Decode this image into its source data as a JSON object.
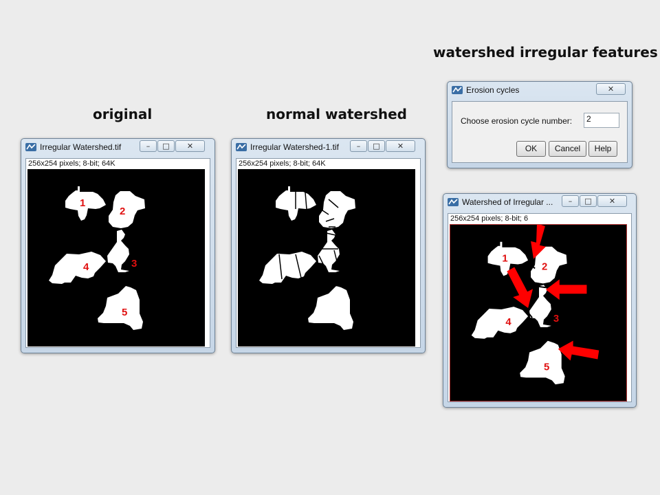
{
  "headings": {
    "original": "original",
    "normal": "normal watershed",
    "irregular": "watershed irregular features"
  },
  "windows": {
    "original": {
      "title": "Irregular Watershed.tif",
      "info": "256x254 pixels; 8-bit; 64K",
      "labels": [
        "1",
        "2",
        "3",
        "4",
        "5"
      ]
    },
    "normal": {
      "title": "Irregular Watershed-1.tif",
      "info": "256x254 pixels; 8-bit; 64K"
    },
    "result": {
      "title": "Watershed of Irregular ...",
      "info": "256x254 pixels; 8-bit; 6",
      "labels": [
        "1",
        "2",
        "3",
        "4",
        "5"
      ]
    }
  },
  "dialog": {
    "title": "Erosion cycles",
    "prompt": "Choose erosion cycle number:",
    "value": "2",
    "ok": "OK",
    "cancel": "Cancel",
    "help": "Help"
  },
  "colors": {
    "background": "#ececec",
    "image_bg": "#000000",
    "particle": "#ffffff",
    "label": "#e01010",
    "arrow": "#ff0000"
  }
}
